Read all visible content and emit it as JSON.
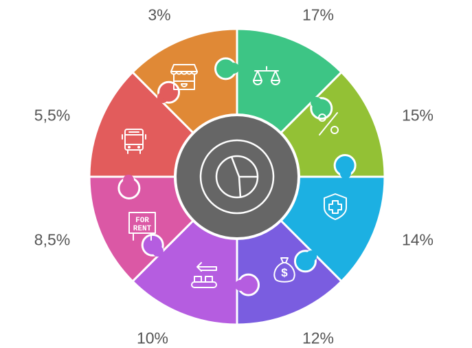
{
  "segments": [
    {
      "label": "17%",
      "icon": "scales-icon",
      "color": "#3dc585"
    },
    {
      "label": "15%",
      "icon": "percent-icon",
      "color": "#93c135"
    },
    {
      "label": "14%",
      "icon": "health-shield-icon",
      "color": "#1cb0e2"
    },
    {
      "label": "12%",
      "icon": "money-bag-icon",
      "color": "#7a5de0"
    },
    {
      "label": "10%",
      "icon": "conveyor-icon",
      "color": "#b55de0"
    },
    {
      "label": "8,5%",
      "icon": "for-rent-sign-icon",
      "color": "#db58a5"
    },
    {
      "label": "5,5%",
      "icon": "bus-icon",
      "color": "#e25c5c"
    },
    {
      "label": "3%",
      "icon": "market-stall-icon",
      "color": "#e08936"
    }
  ],
  "center": {
    "icon": "pie-chart-icon",
    "color": "#666666"
  },
  "rent_sign": {
    "line1": "FOR",
    "line2": "RENT"
  }
}
